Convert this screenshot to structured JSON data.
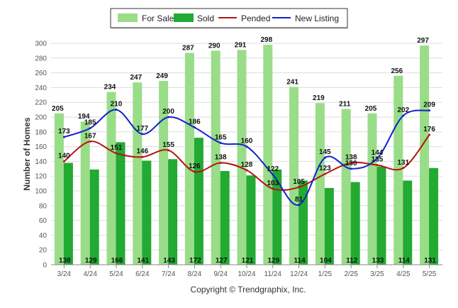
{
  "chart_data": {
    "type": "bar",
    "title": "",
    "xlabel": "",
    "ylabel": "Number of Homes",
    "ylim": [
      0,
      300
    ],
    "yticks": [
      0,
      20,
      40,
      60,
      80,
      100,
      120,
      140,
      160,
      180,
      200,
      220,
      240,
      260,
      280,
      300
    ],
    "grid": true,
    "legend_position": "top-center",
    "categories": [
      "3/24",
      "4/24",
      "5/24",
      "6/24",
      "7/24",
      "8/24",
      "9/24",
      "10/24",
      "11/24",
      "12/24",
      "1/25",
      "2/25",
      "3/25",
      "4/25",
      "5/25"
    ],
    "series": [
      {
        "name": "For Sale",
        "kind": "bar",
        "color": "#99dd88",
        "values": [
          205,
          194,
          234,
          247,
          249,
          287,
          290,
          291,
          298,
          241,
          219,
          211,
          205,
          256,
          297
        ]
      },
      {
        "name": "Sold",
        "kind": "bar",
        "color": "#22aa33",
        "values": [
          138,
          129,
          166,
          141,
          143,
          172,
          127,
          121,
          129,
          114,
          104,
          112,
          133,
          114,
          131
        ]
      },
      {
        "name": "Pended",
        "kind": "line",
        "color": "#bb1111",
        "values": [
          140,
          167,
          151,
          146,
          155,
          126,
          138,
          128,
          103,
          105,
          123,
          138,
          135,
          131,
          176
        ]
      },
      {
        "name": "New Listing",
        "kind": "line",
        "color": "#1122cc",
        "values": [
          173,
          185,
          210,
          177,
          200,
          186,
          165,
          160,
          122,
          81,
          145,
          130,
          144,
          202,
          209
        ]
      }
    ],
    "footer": "Copyright © Trendgraphix, Inc."
  }
}
